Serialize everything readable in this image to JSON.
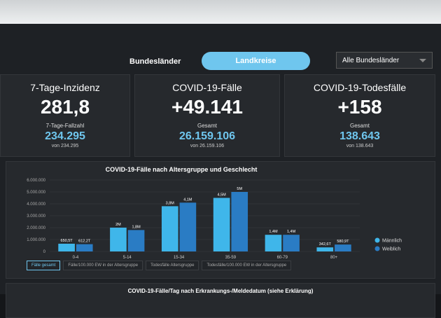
{
  "nav": {
    "tabs": [
      "Bundesländer",
      "Landkreise"
    ],
    "dropdown": "Alle Bundesländer"
  },
  "cards": [
    {
      "title": "7-Tage-Inzidenz",
      "value": "281,8",
      "sub_label": "7-Tage-Fallzahl",
      "sub_value": "234.295",
      "sub_note": "von 234.295"
    },
    {
      "title": "COVID-19-Fälle",
      "value": "+49.141",
      "sub_label": "Gesamt",
      "sub_value": "26.159.106",
      "sub_note": "von 26.159.106"
    },
    {
      "title": "COVID-19-Todesfälle",
      "value": "+158",
      "sub_label": "Gesamt",
      "sub_value": "138.643",
      "sub_note": "von 138.643"
    }
  ],
  "chart_data": {
    "type": "bar",
    "title": "COVID-19-Fälle nach Altersgruppe und Geschlecht",
    "categories": [
      "0-4",
      "5-14",
      "15-34",
      "35-59",
      "60-79",
      "80+"
    ],
    "series": [
      {
        "name": "Männlich",
        "color": "#3fb6ea",
        "values": [
          650500,
          2000000,
          3800000,
          4500000,
          1400000,
          342600
        ],
        "value_labels": [
          "650,5T",
          "2M",
          "3,8M",
          "4,5M",
          "1,4M",
          "342,6T"
        ]
      },
      {
        "name": "Weiblich",
        "color": "#2a7cc4",
        "values": [
          612200,
          1800000,
          4100000,
          5000000,
          1400000,
          580900
        ],
        "value_labels": [
          "612,2T",
          "1,8M",
          "4,1M",
          "5M",
          "1,4M",
          "580,9T"
        ]
      }
    ],
    "ylim": [
      0,
      6000000
    ],
    "yticks": [
      0,
      {
        "value": 1000000,
        "label": "1.000.000"
      },
      {
        "value": 2000000,
        "label": "2.000.000"
      },
      {
        "value": 3000000,
        "label": "3.000.000"
      },
      {
        "value": 4000000,
        "label": "4.000.000"
      },
      {
        "value": 5000000,
        "label": "5.000.000"
      },
      {
        "value": 6000000,
        "label": "6.000.000"
      }
    ],
    "grid": true,
    "legend": "right"
  },
  "chart_tabs": [
    "Fälle gesamt",
    "Fälle/100.000 EW in der Altersgruppe",
    "Todesfälle Altersgruppe",
    "Todesfälle/100.000 EW in der Altersgruppe"
  ],
  "next_panel_title": "COVID-19-Fälle/Tag nach Erkrankungs-/Meldedatum (siehe Erklärung)"
}
